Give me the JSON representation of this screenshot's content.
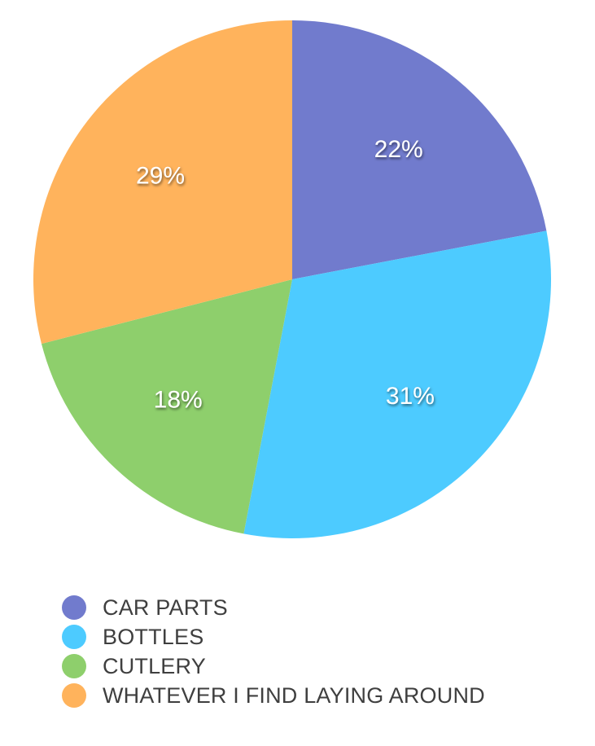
{
  "chart_data": {
    "type": "pie",
    "title": "",
    "start_angle_deg": 0,
    "direction": "clockwise",
    "slices": [
      {
        "name": "CAR PARTS",
        "value": 22,
        "label": "22%",
        "color": "#717bcd"
      },
      {
        "name": "BOTTLES",
        "value": 31,
        "label": "31%",
        "color": "#4dcbff"
      },
      {
        "name": "CUTLERY",
        "value": 18,
        "label": "18%",
        "color": "#8ecf6c"
      },
      {
        "name": "WHATEVER I FIND LAYING AROUND",
        "value": 29,
        "label": "29%",
        "color": "#ffb35c"
      }
    ],
    "data_labels": "inside",
    "legend_position": "bottom-left"
  }
}
